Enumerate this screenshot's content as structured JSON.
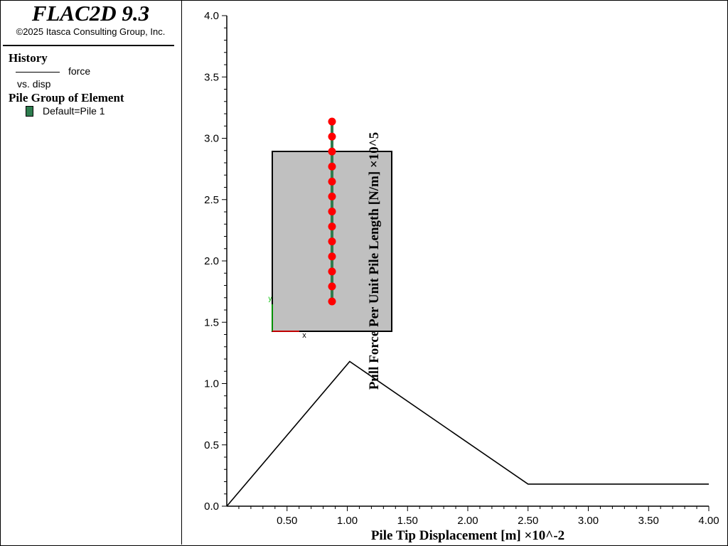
{
  "app": {
    "title": "FLAC2D 9.3",
    "copyright": "©2025 Itasca Consulting Group, Inc."
  },
  "legend": {
    "history_heading": "History",
    "history_item": "force",
    "history_vs": "vs. disp",
    "history_line_color": "#000000",
    "pile_heading": "Pile Group of Element",
    "pile_item": "Default=Pile 1",
    "pile_color": "#2e7d4f"
  },
  "chart_data": {
    "type": "line",
    "xlabel": "Pile Tip Displacement [m] ×10^-2",
    "ylabel": "Pull Force Per Unit Pile Length [N/m] ×10^5",
    "xlim": [
      0,
      4.0
    ],
    "ylim": [
      0,
      4.0
    ],
    "x_ticks": [
      "0.50",
      "1.00",
      "1.50",
      "2.00",
      "2.50",
      "3.00",
      "3.50",
      "4.00"
    ],
    "y_ticks": [
      "0.0",
      "0.5",
      "1.0",
      "1.5",
      "2.0",
      "2.5",
      "3.0",
      "3.5",
      "4.0"
    ],
    "series": [
      {
        "x": [
          0.0,
          1.02,
          2.5,
          4.0
        ],
        "y": [
          0.0,
          1.18,
          0.18,
          0.18
        ],
        "color": "#000000"
      }
    ],
    "grid": false
  },
  "inset": {
    "block_color": "#c0c0c0",
    "pile_color": "#2e7d4f",
    "node_color": "#ff0000",
    "node_count": 13,
    "x_axis_label": "x",
    "y_axis_label": "y",
    "x_axis_color": "#ff0000",
    "y_axis_color": "#00c000"
  }
}
